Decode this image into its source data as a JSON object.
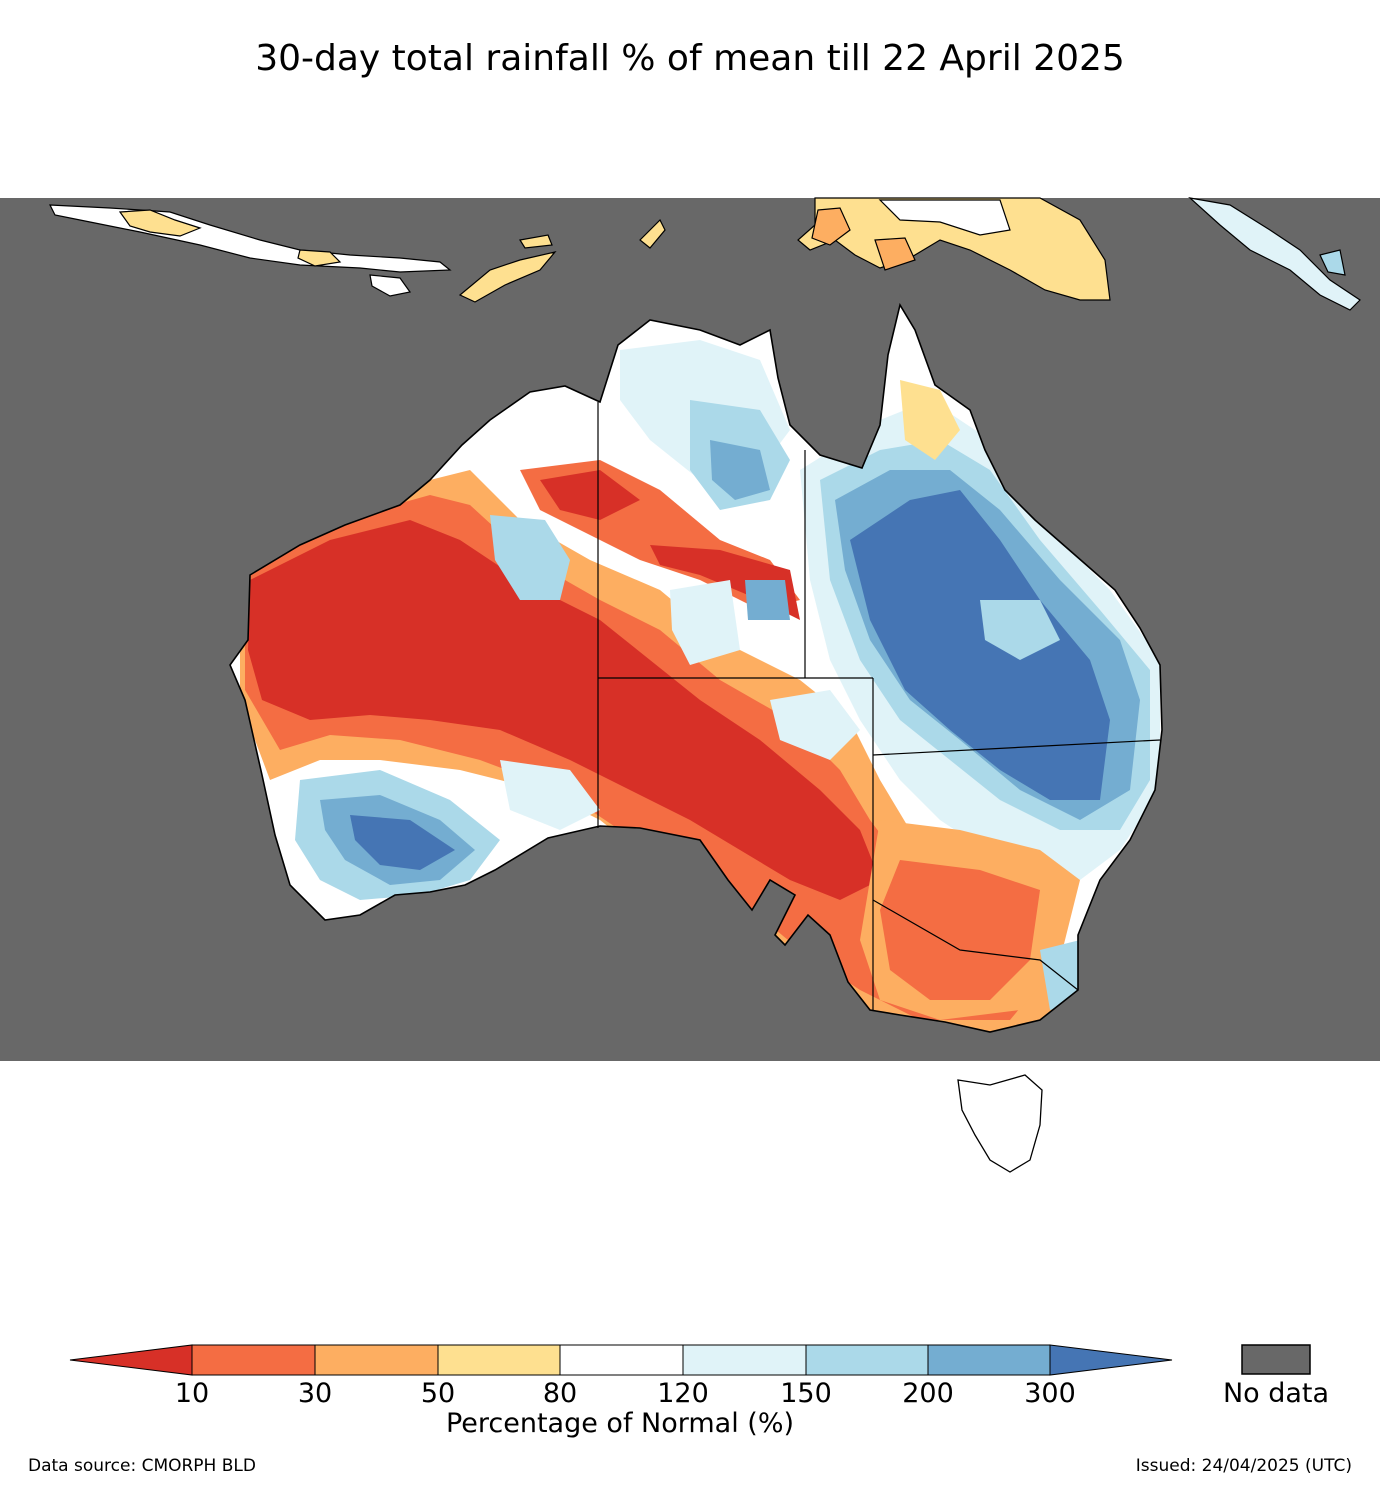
{
  "title": "30-day total rainfall % of mean till 22 April 2025",
  "colors": {
    "no_data": "#686868",
    "lt10": "#d73027",
    "c10_30": "#f46d43",
    "c30_50": "#fdae61",
    "c50_80": "#fee090",
    "c80_120": "#ffffff",
    "c120_150": "#e0f3f8",
    "c150_200": "#abd9e9",
    "c200_300": "#74add1",
    "gt300": "#4575b4"
  },
  "legend": {
    "ticks": [
      "10",
      "30",
      "50",
      "80",
      "120",
      "150",
      "200",
      "300"
    ],
    "title": "Percentage of Normal (%)",
    "no_data_label": "No data"
  },
  "footer": {
    "source": "Data source: CMORPH BLD",
    "issued": "Issued: 24/04/2025 (UTC)"
  }
}
